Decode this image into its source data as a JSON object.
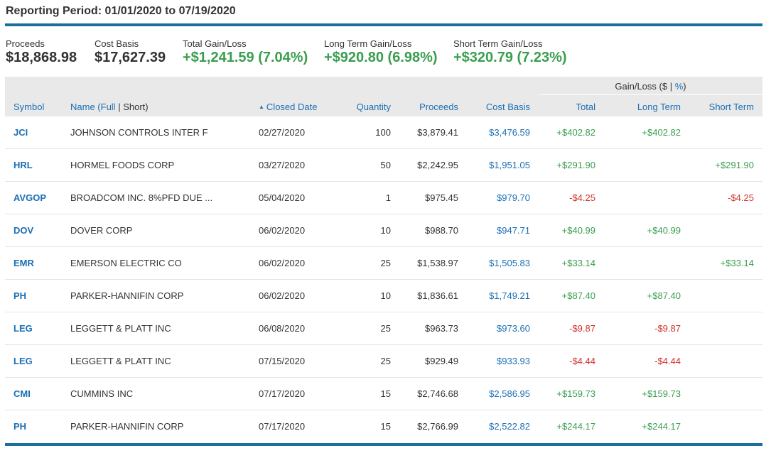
{
  "title": "Reporting Period: 01/01/2020 to 07/19/2020",
  "summary": {
    "proceeds": {
      "label": "Proceeds",
      "value": "$18,868.98"
    },
    "cost_basis": {
      "label": "Cost Basis",
      "value": "$17,627.39"
    },
    "total": {
      "label": "Total Gain/Loss",
      "value": "+$1,241.59 (7.04%)"
    },
    "long_term": {
      "label": "Long Term Gain/Loss",
      "value": "+$920.80 (6.98%)"
    },
    "short_term": {
      "label": "Short Term Gain/Loss",
      "value": "+$320.79 (7.23%)"
    }
  },
  "table": {
    "group_header": {
      "prefix": "Gain/Loss (",
      "dollar": "$",
      "sep": " | ",
      "percent": "%",
      "suffix": ")"
    },
    "headers": {
      "symbol": "Symbol",
      "name": "Name (",
      "name_full": "Full",
      "name_sep": " | ",
      "name_short": "Short",
      "name_close": ")",
      "closed_date": "Closed Date",
      "quantity": "Quantity",
      "proceeds": "Proceeds",
      "cost_basis": "Cost Basis",
      "total": "Total",
      "long_term": "Long Term",
      "short_term": "Short Term"
    },
    "sort_indicator": "▲",
    "rows": [
      {
        "symbol": "JCI",
        "name": "JOHNSON CONTROLS INTER F",
        "date": "02/27/2020",
        "qty": "100",
        "proceeds": "$3,879.41",
        "cost": "$3,476.59",
        "total": "+$402.82",
        "long": "+$402.82",
        "short": ""
      },
      {
        "symbol": "HRL",
        "name": "HORMEL FOODS CORP",
        "date": "03/27/2020",
        "qty": "50",
        "proceeds": "$2,242.95",
        "cost": "$1,951.05",
        "total": "+$291.90",
        "long": "",
        "short": "+$291.90"
      },
      {
        "symbol": "AVGOP",
        "name": "BROADCOM INC. 8%PFD DUE ...",
        "date": "05/04/2020",
        "qty": "1",
        "proceeds": "$975.45",
        "cost": "$979.70",
        "total": "-$4.25",
        "long": "",
        "short": "-$4.25"
      },
      {
        "symbol": "DOV",
        "name": "DOVER CORP",
        "date": "06/02/2020",
        "qty": "10",
        "proceeds": "$988.70",
        "cost": "$947.71",
        "total": "+$40.99",
        "long": "+$40.99",
        "short": ""
      },
      {
        "symbol": "EMR",
        "name": "EMERSON ELECTRIC CO",
        "date": "06/02/2020",
        "qty": "25",
        "proceeds": "$1,538.97",
        "cost": "$1,505.83",
        "total": "+$33.14",
        "long": "",
        "short": "+$33.14"
      },
      {
        "symbol": "PH",
        "name": "PARKER-HANNIFIN CORP",
        "date": "06/02/2020",
        "qty": "10",
        "proceeds": "$1,836.61",
        "cost": "$1,749.21",
        "total": "+$87.40",
        "long": "+$87.40",
        "short": ""
      },
      {
        "symbol": "LEG",
        "name": "LEGGETT & PLATT INC",
        "date": "06/08/2020",
        "qty": "25",
        "proceeds": "$963.73",
        "cost": "$973.60",
        "total": "-$9.87",
        "long": "-$9.87",
        "short": ""
      },
      {
        "symbol": "LEG",
        "name": "LEGGETT & PLATT INC",
        "date": "07/15/2020",
        "qty": "25",
        "proceeds": "$929.49",
        "cost": "$933.93",
        "total": "-$4.44",
        "long": "-$4.44",
        "short": ""
      },
      {
        "symbol": "CMI",
        "name": "CUMMINS INC",
        "date": "07/17/2020",
        "qty": "15",
        "proceeds": "$2,746.68",
        "cost": "$2,586.95",
        "total": "+$159.73",
        "long": "+$159.73",
        "short": ""
      },
      {
        "symbol": "PH",
        "name": "PARKER-HANNIFIN CORP",
        "date": "07/17/2020",
        "qty": "15",
        "proceeds": "$2,766.99",
        "cost": "$2,522.82",
        "total": "+$244.17",
        "long": "+$244.17",
        "short": ""
      }
    ]
  },
  "colors": {
    "accent_blue": "#1a6f9c",
    "link_blue": "#1a6fb5",
    "gain_green": "#3a9e4f",
    "loss_red": "#d0332c",
    "header_bg": "#e9e9e9"
  }
}
